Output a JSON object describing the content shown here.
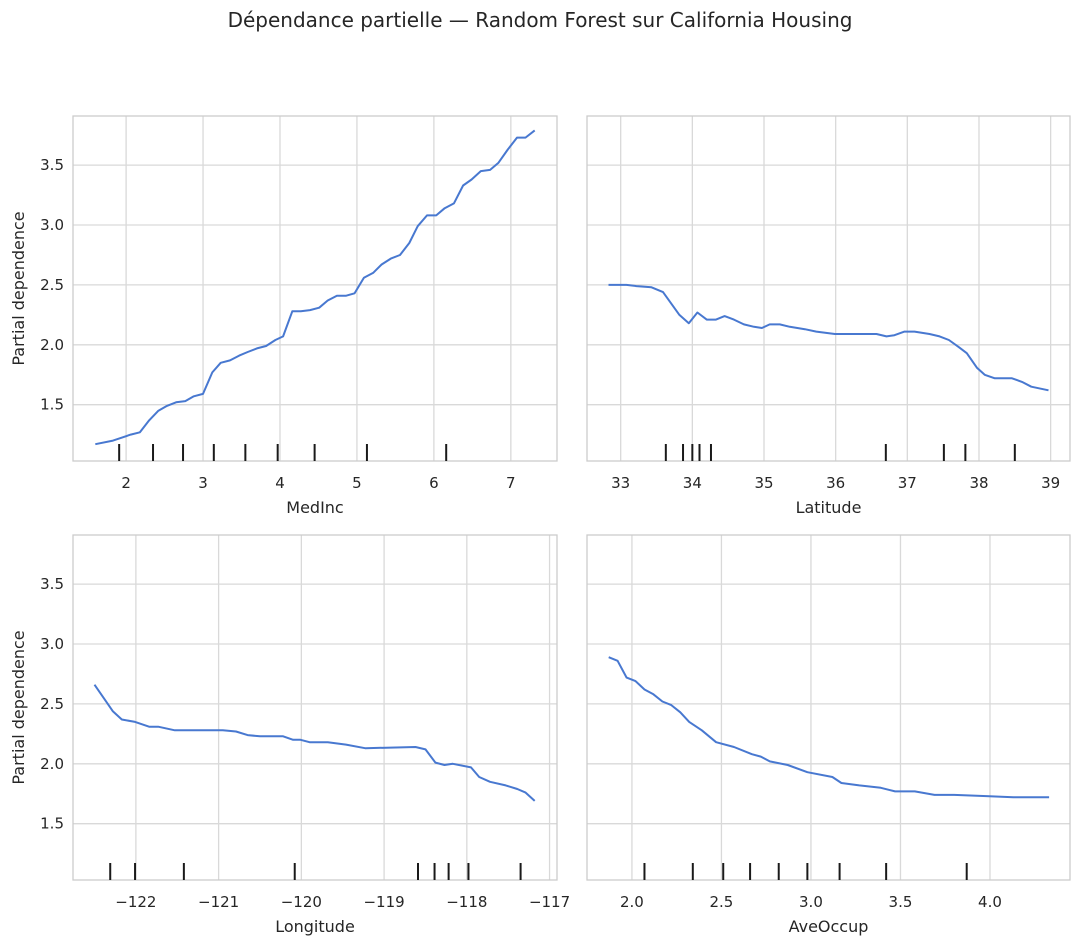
{
  "title": "Dépendance partielle — Random Forest sur California Housing",
  "colors": {
    "line": "#4878d0",
    "grid": "#d9d9d9",
    "frame": "#cccccc",
    "deciles": "#1a1a1a"
  },
  "chart_data": [
    {
      "type": "line",
      "xlabel": "MedInc",
      "ylabel": "Partial dependence",
      "xlim": [
        1.31,
        7.6
      ],
      "ylim": [
        1.03,
        3.91
      ],
      "grid": true,
      "xticks": [
        2,
        3,
        4,
        5,
        6,
        7
      ],
      "xtick_labels": [
        "2",
        "3",
        "4",
        "5",
        "6",
        "7"
      ],
      "yticks": [
        1.5,
        2.0,
        2.5,
        3.0,
        3.5
      ],
      "ytick_labels": [
        "1.5",
        "2.0",
        "2.5",
        "3.0",
        "3.5"
      ],
      "x": [
        1.6,
        1.83,
        2.06,
        2.18,
        2.3,
        2.42,
        2.53,
        2.65,
        2.77,
        2.88,
        3.0,
        3.12,
        3.23,
        3.35,
        3.47,
        3.58,
        3.7,
        3.82,
        3.94,
        4.04,
        4.16,
        4.27,
        4.39,
        4.51,
        4.62,
        4.74,
        4.86,
        4.97,
        5.09,
        5.21,
        5.32,
        5.44,
        5.56,
        5.68,
        5.79,
        5.91,
        6.03,
        6.14,
        6.26,
        6.38,
        6.49,
        6.61,
        6.73,
        6.84,
        6.96,
        7.08,
        7.19,
        7.31
      ],
      "y": [
        1.17,
        1.2,
        1.25,
        1.27,
        1.37,
        1.45,
        1.49,
        1.52,
        1.53,
        1.57,
        1.59,
        1.77,
        1.85,
        1.87,
        1.91,
        1.94,
        1.97,
        1.99,
        2.04,
        2.07,
        2.28,
        2.28,
        2.29,
        2.31,
        2.37,
        2.41,
        2.41,
        2.43,
        2.56,
        2.6,
        2.67,
        2.72,
        2.75,
        2.85,
        2.99,
        3.08,
        3.08,
        3.14,
        3.18,
        3.33,
        3.38,
        3.45,
        3.46,
        3.52,
        3.63,
        3.73,
        3.73,
        3.79
      ],
      "deciles": [
        1.91,
        2.35,
        2.74,
        3.14,
        3.55,
        3.97,
        4.45,
        5.13,
        6.16
      ]
    },
    {
      "type": "line",
      "xlabel": "Latitude",
      "ylabel": "",
      "xlim": [
        32.53,
        39.27
      ],
      "ylim": [
        1.03,
        3.91
      ],
      "grid": true,
      "xticks": [
        33,
        34,
        35,
        36,
        37,
        38,
        39
      ],
      "xtick_labels": [
        "33",
        "34",
        "35",
        "36",
        "37",
        "38",
        "39"
      ],
      "yticks": [
        1.5,
        2.0,
        2.5,
        3.0,
        3.5
      ],
      "ytick_labels": [],
      "x": [
        32.83,
        33.08,
        33.22,
        33.43,
        33.59,
        33.82,
        33.95,
        34.07,
        34.2,
        34.33,
        34.45,
        34.58,
        34.72,
        34.86,
        34.97,
        35.08,
        35.22,
        35.36,
        35.57,
        35.73,
        35.99,
        36.57,
        36.71,
        36.82,
        36.96,
        37.1,
        37.31,
        37.45,
        37.58,
        37.72,
        37.83,
        37.97,
        38.08,
        38.22,
        38.46,
        38.6,
        38.73,
        38.97
      ],
      "y": [
        2.5,
        2.5,
        2.49,
        2.48,
        2.44,
        2.25,
        2.18,
        2.27,
        2.21,
        2.21,
        2.24,
        2.21,
        2.17,
        2.15,
        2.14,
        2.17,
        2.17,
        2.15,
        2.13,
        2.11,
        2.09,
        2.09,
        2.07,
        2.08,
        2.11,
        2.11,
        2.09,
        2.07,
        2.04,
        1.98,
        1.93,
        1.81,
        1.75,
        1.72,
        1.72,
        1.69,
        1.65,
        1.62
      ],
      "deciles": [
        33.63,
        33.87,
        34.0,
        34.1,
        34.26,
        36.7,
        37.51,
        37.81,
        38.5
      ]
    },
    {
      "type": "line",
      "xlabel": "Longitude",
      "ylabel": "Partial dependence",
      "xlim": [
        -122.76,
        -116.91
      ],
      "ylim": [
        1.03,
        3.91
      ],
      "grid": true,
      "xticks": [
        -122,
        -121,
        -120,
        -119,
        -118,
        -117
      ],
      "xtick_labels": [
        "−122",
        "−121",
        "−120",
        "−119",
        "−118",
        "−117"
      ],
      "yticks": [
        1.5,
        2.0,
        2.5,
        3.0,
        3.5
      ],
      "ytick_labels": [
        "1.5",
        "2.0",
        "2.5",
        "3.0",
        "3.5"
      ],
      "x": [
        -122.5,
        -122.37,
        -122.28,
        -122.17,
        -122.01,
        -121.84,
        -121.73,
        -121.53,
        -121.34,
        -121.17,
        -120.95,
        -120.79,
        -120.65,
        -120.5,
        -120.22,
        -120.1,
        -120.01,
        -119.9,
        -119.68,
        -119.46,
        -119.23,
        -118.62,
        -118.5,
        -118.38,
        -118.27,
        -118.17,
        -117.95,
        -117.85,
        -117.72,
        -117.53,
        -117.39,
        -117.29,
        -117.18
      ],
      "y": [
        2.66,
        2.53,
        2.44,
        2.37,
        2.35,
        2.31,
        2.31,
        2.28,
        2.28,
        2.28,
        2.28,
        2.27,
        2.24,
        2.23,
        2.23,
        2.2,
        2.2,
        2.18,
        2.18,
        2.16,
        2.13,
        2.14,
        2.12,
        2.01,
        1.99,
        2.0,
        1.97,
        1.89,
        1.85,
        1.82,
        1.79,
        1.76,
        1.69
      ],
      "deciles": [
        -122.31,
        -122.01,
        -121.42,
        -120.08,
        -118.59,
        -118.39,
        -118.22,
        -117.98,
        -117.35
      ]
    },
    {
      "type": "line",
      "xlabel": "AveOccup",
      "ylabel": "",
      "xlim": [
        1.749,
        4.447
      ],
      "ylim": [
        1.03,
        3.91
      ],
      "grid": true,
      "xticks": [
        2.0,
        2.5,
        3.0,
        3.5,
        4.0
      ],
      "xtick_labels": [
        "2.0",
        "2.5",
        "3.0",
        "3.5",
        "4.0"
      ],
      "yticks": [
        1.5,
        2.0,
        2.5,
        3.0,
        3.5
      ],
      "ytick_labels": [],
      "x": [
        1.87,
        1.92,
        1.97,
        2.02,
        2.07,
        2.12,
        2.17,
        2.22,
        2.27,
        2.32,
        2.39,
        2.47,
        2.57,
        2.67,
        2.72,
        2.77,
        2.87,
        2.98,
        3.12,
        3.17,
        3.27,
        3.39,
        3.47,
        3.58,
        3.69,
        3.8,
        3.98,
        4.13,
        4.33
      ],
      "y": [
        2.89,
        2.86,
        2.72,
        2.69,
        2.62,
        2.58,
        2.52,
        2.49,
        2.43,
        2.35,
        2.28,
        2.18,
        2.14,
        2.08,
        2.06,
        2.02,
        1.99,
        1.93,
        1.89,
        1.84,
        1.82,
        1.8,
        1.77,
        1.77,
        1.74,
        1.74,
        1.73,
        1.72,
        1.72
      ],
      "deciles": [
        2.07,
        2.34,
        2.51,
        2.66,
        2.82,
        2.98,
        3.16,
        3.42,
        3.87
      ]
    }
  ]
}
